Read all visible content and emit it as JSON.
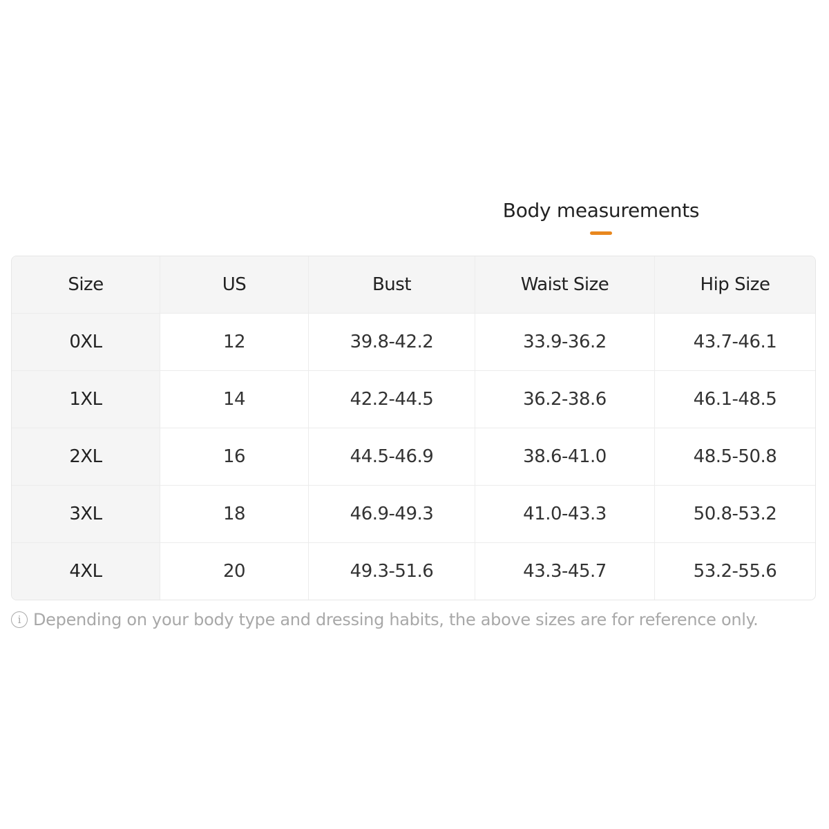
{
  "title": "Body measurements",
  "accent_color": "#e8871e",
  "table": {
    "headers": [
      "Size",
      "US",
      "Bust",
      "Waist Size",
      "Hip Size"
    ],
    "rows": [
      [
        "0XL",
        "12",
        "39.8-42.2",
        "33.9-36.2",
        "43.7-46.1"
      ],
      [
        "1XL",
        "14",
        "42.2-44.5",
        "36.2-38.6",
        "46.1-48.5"
      ],
      [
        "2XL",
        "16",
        "44.5-46.9",
        "38.6-41.0",
        "48.5-50.8"
      ],
      [
        "3XL",
        "18",
        "46.9-49.3",
        "41.0-43.3",
        "50.8-53.2"
      ],
      [
        "4XL",
        "20",
        "49.3-51.6",
        "43.3-45.7",
        "53.2-55.6"
      ]
    ]
  },
  "note": {
    "icon": "info-icon",
    "icon_glyph": "i",
    "text": "Depending on your body type and dressing habits, the above sizes are for reference only."
  }
}
